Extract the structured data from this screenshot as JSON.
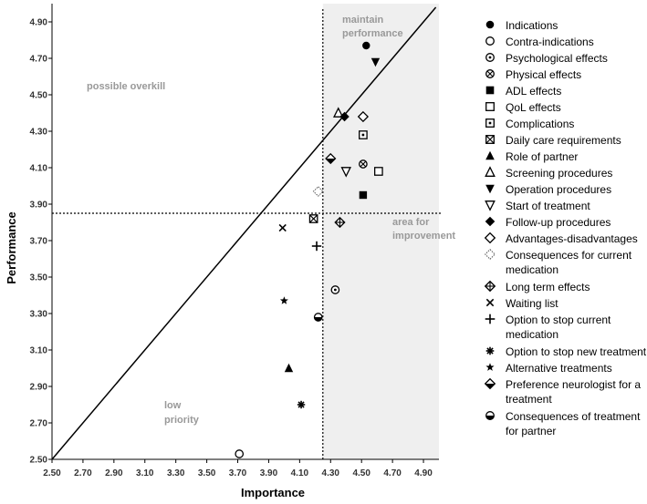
{
  "chart_data": {
    "type": "scatter",
    "xlabel": "Importance",
    "ylabel": "Performance",
    "xlim": [
      2.5,
      5.0
    ],
    "ylim": [
      2.5,
      5.0
    ],
    "x_ticks": [
      "2.50",
      "2.70",
      "2.90",
      "3.10",
      "3.30",
      "3.50",
      "3.70",
      "3.90",
      "4.10",
      "4.30",
      "4.50",
      "4.70",
      "4.90"
    ],
    "y_ticks": [
      "2.50",
      "2.70",
      "2.90",
      "3.10",
      "3.30",
      "3.50",
      "3.70",
      "3.90",
      "4.10",
      "4.30",
      "4.50",
      "4.70",
      "4.90"
    ],
    "diagonal": "y = x",
    "reference_lines": {
      "x": 4.25,
      "y": 3.85
    },
    "shaded_region": "Importance > 4.25",
    "region_labels": {
      "maintain": [
        "maintain",
        "performance"
      ],
      "overkill": [
        "possible overkill"
      ],
      "improvement": [
        "area for",
        "improvement"
      ],
      "low": [
        "low",
        "priority"
      ]
    },
    "points": [
      {
        "label": [
          "Indications"
        ],
        "marker": "circle-filled",
        "x": 4.53,
        "y": 4.77
      },
      {
        "label": [
          "Contra-indications"
        ],
        "marker": "circle-open",
        "x": 3.71,
        "y": 2.53
      },
      {
        "label": [
          "Psychological effects"
        ],
        "marker": "circle-dot",
        "x": 4.33,
        "y": 3.43
      },
      {
        "label": [
          "Physical effects"
        ],
        "marker": "circle-x",
        "x": 4.51,
        "y": 4.12
      },
      {
        "label": [
          "ADL effects"
        ],
        "marker": "square-filled",
        "x": 4.51,
        "y": 3.95
      },
      {
        "label": [
          "QoL effects"
        ],
        "marker": "square-open",
        "x": 4.61,
        "y": 4.08
      },
      {
        "label": [
          "Complications"
        ],
        "marker": "square-dot",
        "x": 4.51,
        "y": 4.28
      },
      {
        "label": [
          "Daily care requirements"
        ],
        "marker": "square-x",
        "x": 4.19,
        "y": 3.82
      },
      {
        "label": [
          "Role of partner"
        ],
        "marker": "triangle-filled",
        "x": 4.03,
        "y": 3.0
      },
      {
        "label": [
          "Screening procedures"
        ],
        "marker": "triangle-open",
        "x": 4.35,
        "y": 4.4
      },
      {
        "label": [
          "Operation procedures"
        ],
        "marker": "triangle-down-filled",
        "x": 4.59,
        "y": 4.68
      },
      {
        "label": [
          "Start of treatment"
        ],
        "marker": "triangle-down-open",
        "x": 4.4,
        "y": 4.08
      },
      {
        "label": [
          "Follow-up procedures"
        ],
        "marker": "diamond-filled",
        "x": 4.39,
        "y": 4.38
      },
      {
        "label": [
          "Advantages-disadvantages"
        ],
        "marker": "diamond-open",
        "x": 4.51,
        "y": 4.38
      },
      {
        "label": [
          "Consequences for current",
          "medication"
        ],
        "marker": "diamond-dotted",
        "x": 4.22,
        "y": 3.97
      },
      {
        "label": [
          "Long term effects"
        ],
        "marker": "diamond-plus",
        "x": 4.36,
        "y": 3.8
      },
      {
        "label": [
          "Waiting list"
        ],
        "marker": "x",
        "x": 3.99,
        "y": 3.77
      },
      {
        "label": [
          "Option to stop current",
          "medication"
        ],
        "marker": "plus",
        "x": 4.21,
        "y": 3.67
      },
      {
        "label": [
          "Option to stop new treatment"
        ],
        "marker": "asterisk",
        "x": 4.11,
        "y": 2.8
      },
      {
        "label": [
          "Alternative treatments"
        ],
        "marker": "star",
        "x": 4.0,
        "y": 3.37
      },
      {
        "label": [
          "Preference neurologist for a",
          "treatment"
        ],
        "marker": "diamond-half",
        "x": 4.3,
        "y": 4.15
      },
      {
        "label": [
          "Consequences of treatment",
          "for partner"
        ],
        "marker": "circle-half",
        "x": 4.22,
        "y": 3.28
      }
    ]
  }
}
